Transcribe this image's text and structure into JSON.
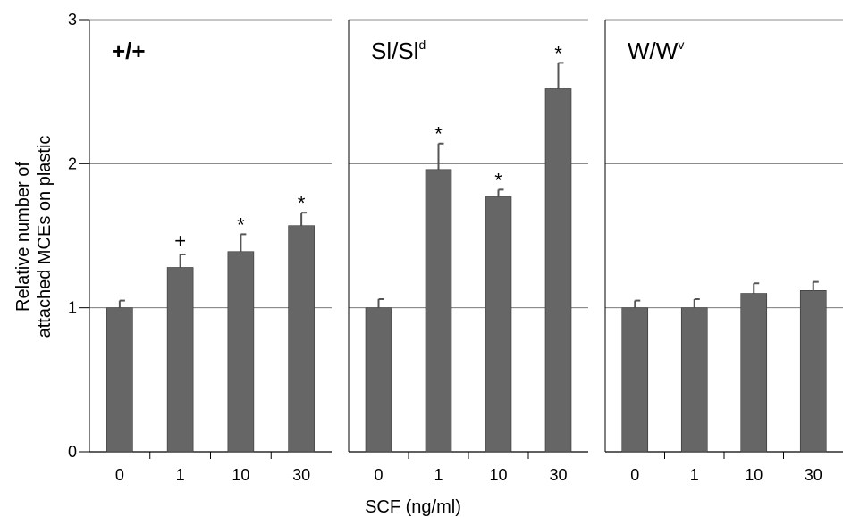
{
  "chart_data": {
    "type": "bar",
    "ylabel": [
      "Relative number of",
      "attached MCEs on plastic"
    ],
    "xlabel": "SCF (ng/ml)",
    "ylim": [
      0,
      3
    ],
    "yticks": [
      "0",
      "1",
      "2",
      "3"
    ],
    "grid": true,
    "bar_color": "#666666",
    "panels": [
      {
        "title_main": "+/+",
        "title_sup": "",
        "categories": [
          "0",
          "1",
          "10",
          "30"
        ],
        "values": [
          1.0,
          1.28,
          1.39,
          1.57
        ],
        "errors": [
          0.05,
          0.09,
          0.12,
          0.09
        ],
        "annotations": [
          "",
          "+",
          "*",
          "*"
        ]
      },
      {
        "title_main": "Sl/Sl",
        "title_sup": "d",
        "categories": [
          "0",
          "1",
          "10",
          "30"
        ],
        "values": [
          1.0,
          1.96,
          1.77,
          2.52
        ],
        "errors": [
          0.06,
          0.18,
          0.05,
          0.18
        ],
        "annotations": [
          "",
          "*",
          "*",
          "*"
        ]
      },
      {
        "title_main": "W/W",
        "title_sup": "v",
        "categories": [
          "0",
          "1",
          "10",
          "30"
        ],
        "values": [
          1.0,
          1.0,
          1.1,
          1.12
        ],
        "errors": [
          0.05,
          0.06,
          0.07,
          0.06
        ],
        "annotations": [
          "",
          "",
          "",
          ""
        ]
      }
    ]
  }
}
